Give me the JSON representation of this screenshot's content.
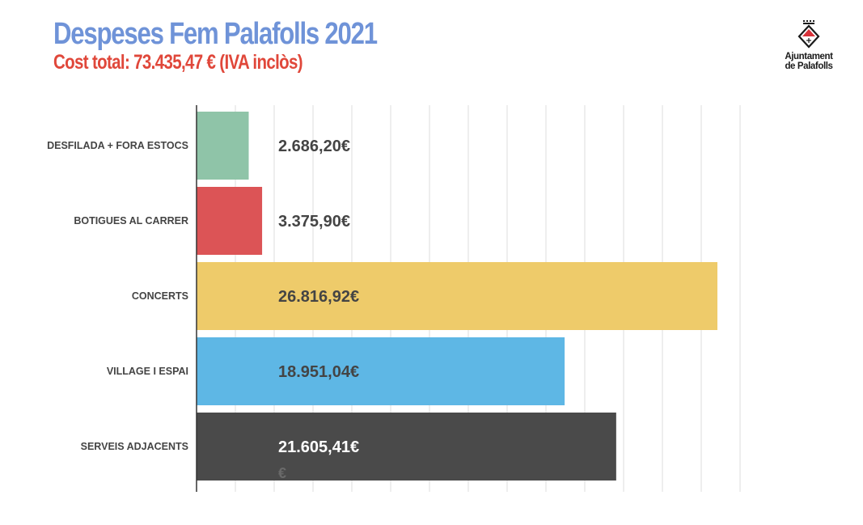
{
  "header": {
    "title": "Despeses Fem Palafolls 2021",
    "subtitle": "Cost total: 73.435,47 € (IVA inclòs)",
    "title_color": "#6f93d8",
    "subtitle_color": "#e0473a"
  },
  "logo": {
    "line1": "Ajuntament",
    "line2": "de Palafolls",
    "icon": "municipal-shield-icon"
  },
  "chart_data": {
    "type": "bar",
    "orientation": "horizontal",
    "categories": [
      "DESFILADA + FORA ESTOCS",
      "BOTIGUES AL CARRER",
      "CONCERTS",
      "VILLAGE I ESPAI",
      "SERVEIS ADJACENTS"
    ],
    "values": [
      2686.2,
      3375.9,
      26816.92,
      18951.04,
      21605.41
    ],
    "value_labels": [
      "2.686,20€",
      "3.375,90€",
      "26.816,92€",
      "18.951,04€",
      "21.605,41€"
    ],
    "stray_label": "€",
    "colors": [
      "#8fc4a8",
      "#dc5456",
      "#eecb6a",
      "#5eb7e5",
      "#4a4a4a"
    ],
    "xlim": [
      0,
      28000
    ],
    "grid": true,
    "legend": "none"
  }
}
